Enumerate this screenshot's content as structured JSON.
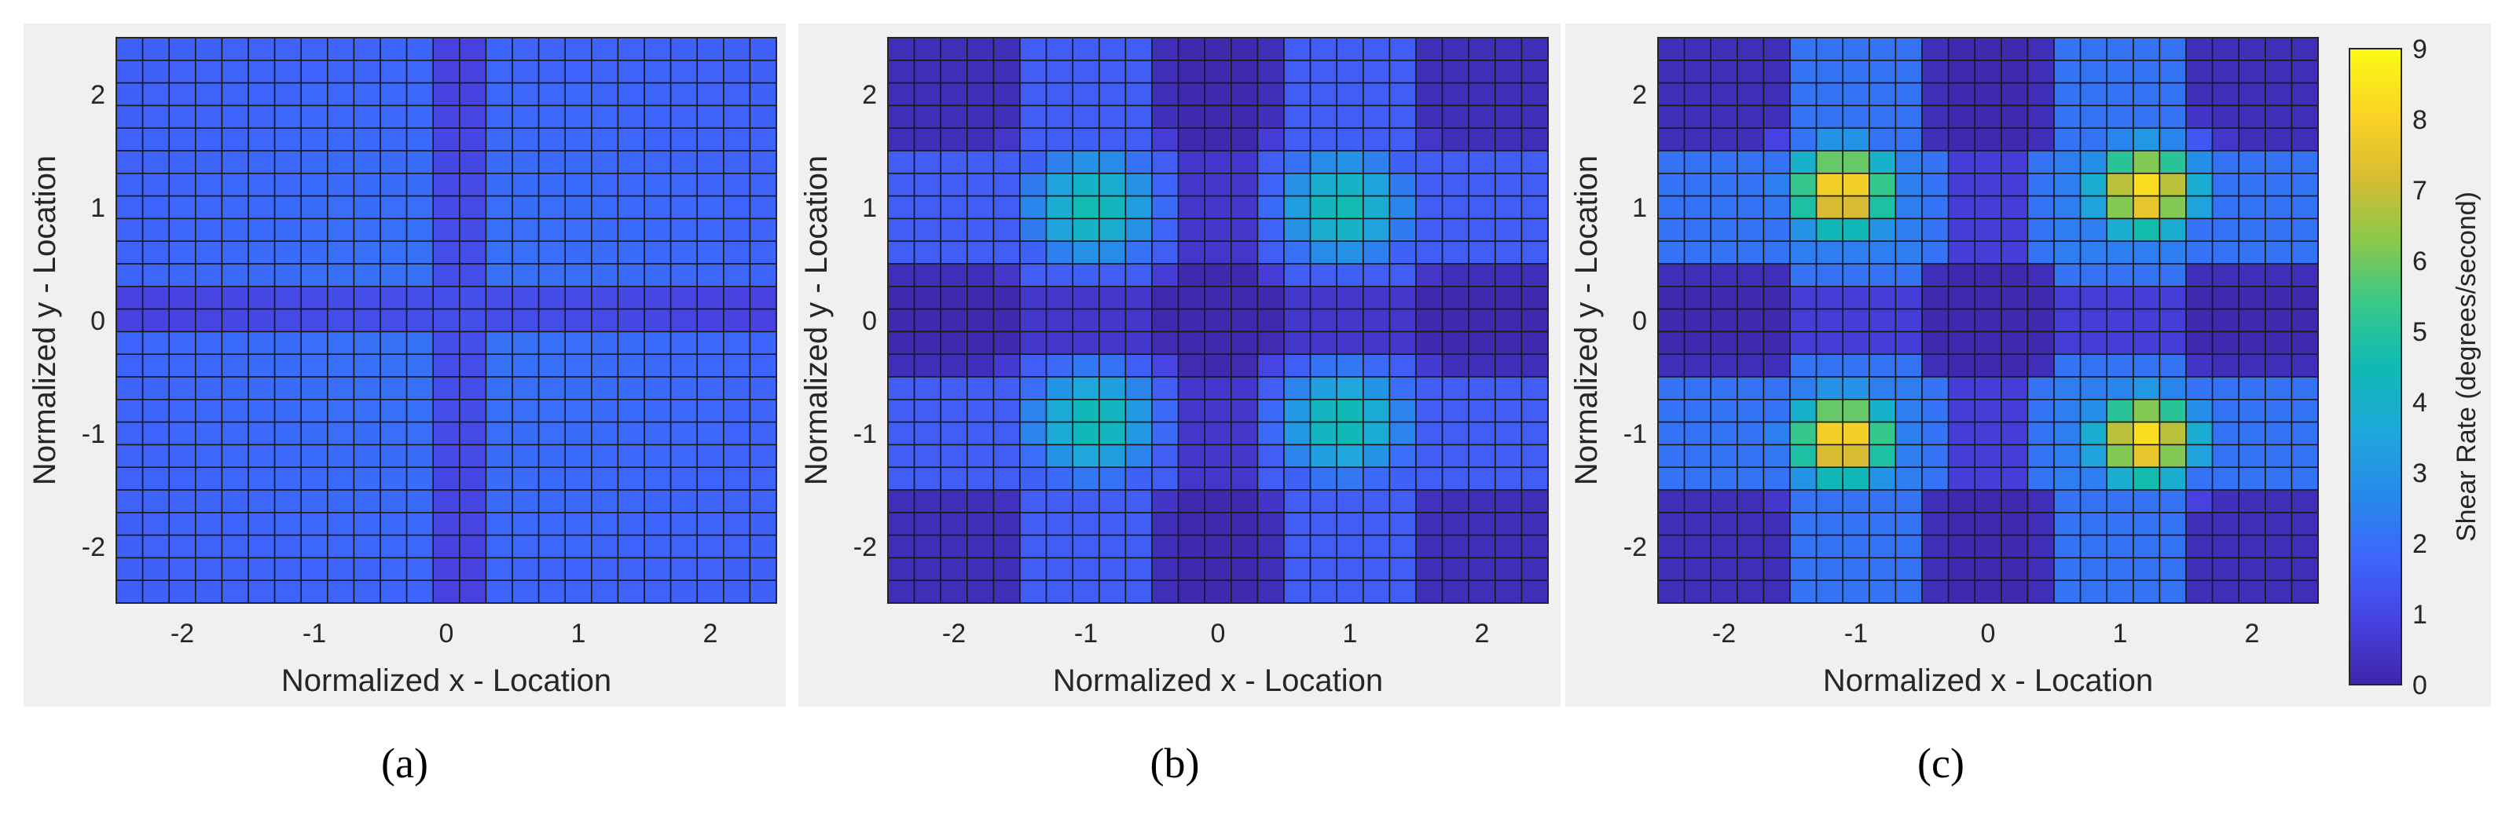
{
  "chart_data": [
    {
      "type": "heatmap",
      "caption": "(a)",
      "xlabel": "Normalized x - Location",
      "ylabel": "Normalized y - Location",
      "xlim": [
        -2.5,
        2.5
      ],
      "ylim": [
        -2.5,
        2.5
      ],
      "xticks": [
        -2,
        -1,
        0,
        1,
        2
      ],
      "yticks": [
        -2,
        -1,
        0,
        1,
        2
      ],
      "grid_size": [
        25,
        25
      ],
      "value_range": [
        0,
        9
      ],
      "description_model": {
        "kind": "cross",
        "base": 1.6,
        "cross_dip": 0.9,
        "center": 0.1,
        "width": 1.1
      }
    },
    {
      "type": "heatmap",
      "caption": "(b)",
      "xlabel": "Normalized x - Location",
      "ylabel": "Normalized y - Location",
      "xlim": [
        -2.5,
        2.5
      ],
      "ylim": [
        -2.5,
        2.5
      ],
      "xticks": [
        -2,
        -1,
        0,
        1,
        2
      ],
      "yticks": [
        -2,
        -1,
        0,
        1,
        2
      ],
      "grid_size": [
        25,
        25
      ],
      "value_range": [
        0,
        9
      ],
      "description_model": {
        "kind": "four_blobs",
        "peak": 4.6,
        "band": 2.4,
        "centers": [
          [
            -0.95,
            1.0
          ],
          [
            0.95,
            1.0
          ],
          [
            -0.95,
            -0.9
          ],
          [
            0.95,
            -0.9
          ]
        ]
      }
    },
    {
      "type": "heatmap",
      "caption": "(c)",
      "xlabel": "Normalized x - Location",
      "ylabel": "Normalized y - Location",
      "xlim": [
        -2.5,
        2.5
      ],
      "ylim": [
        -2.5,
        2.5
      ],
      "xticks": [
        -2,
        -1,
        0,
        1,
        2
      ],
      "yticks": [
        -2,
        -1,
        0,
        1,
        2
      ],
      "grid_size": [
        25,
        25
      ],
      "value_range": [
        0,
        9
      ],
      "description_model": {
        "kind": "four_hot",
        "peak": 8.4,
        "band": 3.4,
        "centers": [
          [
            -1.1,
            1.15
          ],
          [
            1.2,
            1.15
          ],
          [
            -1.1,
            -1.05
          ],
          [
            1.2,
            -1.05
          ]
        ]
      }
    }
  ],
  "colorbar": {
    "label": "Shear Rate (degrees/second)",
    "min": 0,
    "max": 9,
    "ticks": [
      "0",
      "1",
      "2",
      "3",
      "4",
      "5",
      "6",
      "7",
      "8",
      "9"
    ],
    "colormap": "parula"
  }
}
